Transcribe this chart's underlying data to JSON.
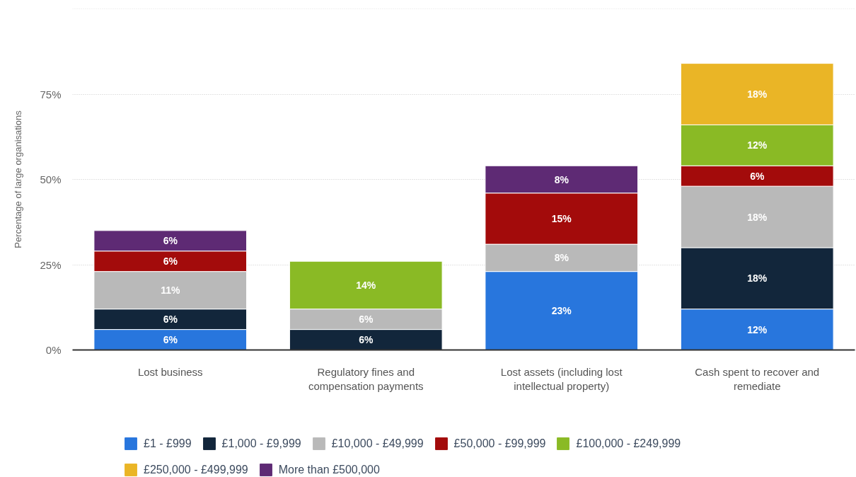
{
  "chart_data": {
    "type": "bar",
    "stacked": true,
    "categories": [
      "Lost business",
      "Regulatory fines and compensation payments",
      "Lost assets (including lost intellectual property)",
      "Cash spent to recover and remediate"
    ],
    "ylabel": "Percentage of large organisations",
    "ylim": [
      0,
      100
    ],
    "yticks": [
      {
        "value": 0,
        "label": "0%"
      },
      {
        "value": 25,
        "label": "25%"
      },
      {
        "value": 50,
        "label": "50%"
      },
      {
        "value": 75,
        "label": "75%"
      },
      {
        "value": 100,
        "label": null
      }
    ],
    "grid": "y",
    "legend": "bottom",
    "series": [
      {
        "name": "£1 - £999",
        "color": "#2876dd",
        "values": [
          6,
          null,
          23,
          12
        ],
        "value_labels": [
          "6%",
          null,
          "23%",
          "12%"
        ]
      },
      {
        "name": "£1,000 - £9,999",
        "color": "#12263b",
        "values": [
          6,
          6,
          null,
          18
        ],
        "value_labels": [
          "6%",
          "6%",
          null,
          "18%"
        ]
      },
      {
        "name": "£10,000 - £49,999",
        "color": "#b9b9b9",
        "values": [
          11,
          6,
          8,
          18
        ],
        "value_labels": [
          "11%",
          "6%",
          "8%",
          "18%"
        ]
      },
      {
        "name": "£50,000 - £99,999",
        "color": "#a30b0b",
        "values": [
          6,
          null,
          15,
          6
        ],
        "value_labels": [
          "6%",
          null,
          "15%",
          "6%"
        ]
      },
      {
        "name": "£100,000 - £249,999",
        "color": "#8aba25",
        "values": [
          null,
          14,
          null,
          12
        ],
        "value_labels": [
          null,
          "14%",
          null,
          "12%"
        ]
      },
      {
        "name": "£250,000 - £499,999",
        "color": "#eab526",
        "values": [
          null,
          null,
          null,
          18
        ],
        "value_labels": [
          null,
          null,
          null,
          "18%"
        ]
      },
      {
        "name": "More than £500,000",
        "color": "#5e2a74",
        "values": [
          6,
          null,
          8,
          null
        ],
        "value_labels": [
          "6%",
          null,
          "8%",
          null
        ]
      }
    ]
  }
}
